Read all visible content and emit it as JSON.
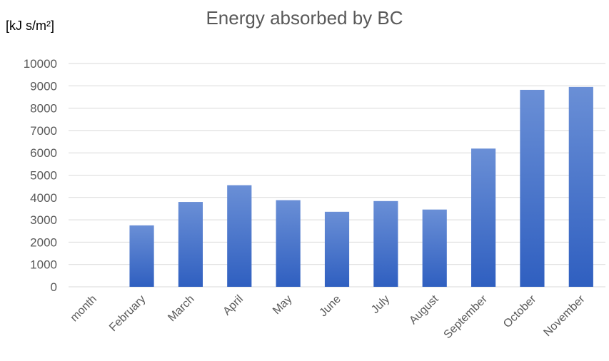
{
  "chart_data": {
    "type": "bar",
    "title": "Energy absorbed by BC",
    "ylabel": "[kJ s/m²]",
    "xlabel": "",
    "categories": [
      "month",
      "February",
      "March",
      "April",
      "May",
      "June",
      "July",
      "August",
      "September",
      "October",
      "November"
    ],
    "values": [
      null,
      2750,
      3800,
      4550,
      3880,
      3360,
      3840,
      3460,
      6190,
      8820,
      8950
    ],
    "ylim": [
      0,
      10000
    ],
    "yticks": [
      0,
      1000,
      2000,
      3000,
      4000,
      5000,
      6000,
      7000,
      8000,
      9000,
      10000
    ],
    "grid": true,
    "legend": "none",
    "colors": {
      "bar_top": "#6a8fd6",
      "bar_bottom": "#2f5fc0",
      "grid": "#d9d9d9",
      "text": "#595959"
    }
  }
}
